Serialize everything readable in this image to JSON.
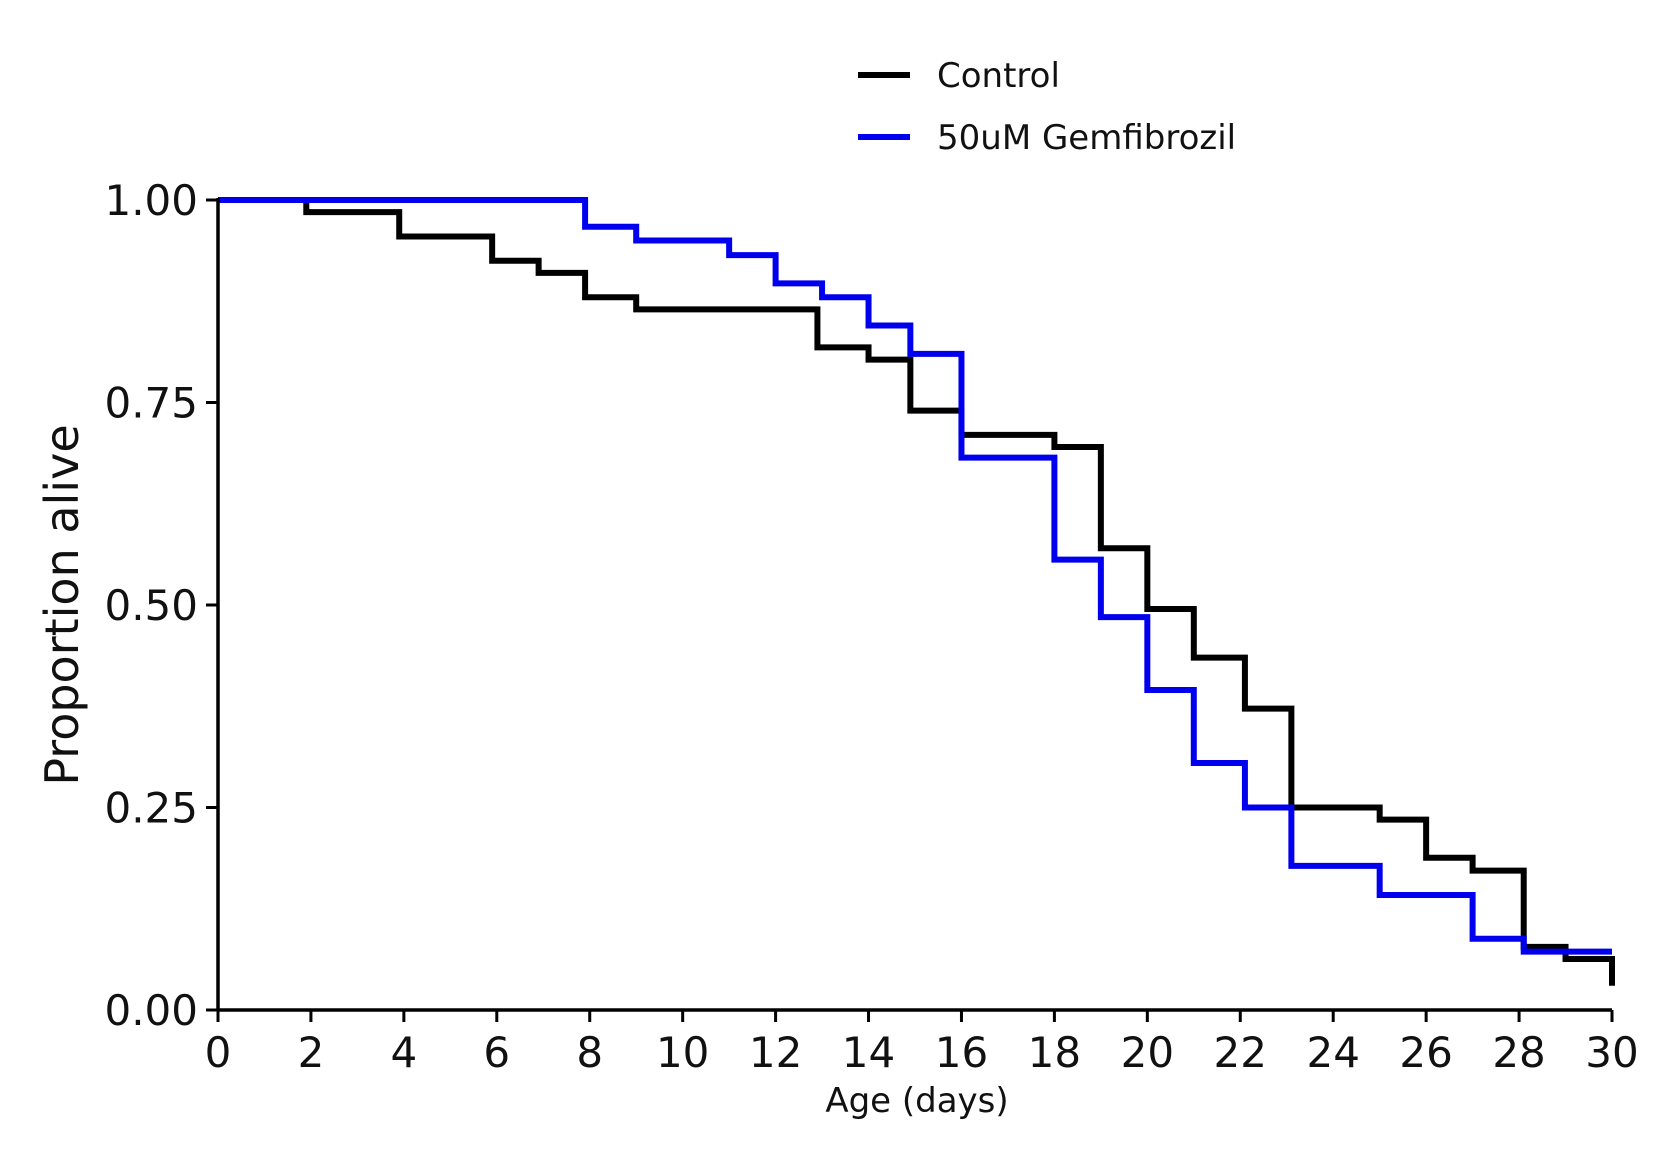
{
  "chart_data": {
    "type": "line",
    "step": "post",
    "title": "",
    "xlabel": "Age (days)",
    "ylabel": "Proportion alive",
    "xlim": [
      0,
      30
    ],
    "ylim": [
      0,
      1
    ],
    "xticks": [
      "0",
      "2",
      "4",
      "6",
      "8",
      "10",
      "12",
      "14",
      "16",
      "18",
      "20",
      "22",
      "24",
      "26",
      "28",
      "30"
    ],
    "yticks": [
      "0.00",
      "0.25",
      "0.50",
      "0.75",
      "1.00"
    ],
    "grid": false,
    "legend_position": "top-center",
    "series": [
      {
        "name": "Control",
        "color": "#000000",
        "x": [
          0,
          1.9,
          3.9,
          5.9,
          6.9,
          7.9,
          9.0,
          12.9,
          14.0,
          14.9,
          16.0,
          18.0,
          19.0,
          20.0,
          21.0,
          22.1,
          23.1,
          25.0,
          26.0,
          27.0,
          28.1,
          29.0,
          30.0
        ],
        "y": [
          1.0,
          0.985,
          0.955,
          0.925,
          0.91,
          0.88,
          0.865,
          0.818,
          0.803,
          0.74,
          0.71,
          0.695,
          0.57,
          0.495,
          0.435,
          0.372,
          0.25,
          0.235,
          0.188,
          0.172,
          0.078,
          0.063,
          0.03
        ]
      },
      {
        "name": "50uM Gemfibrozil",
        "color": "#0000ee",
        "x": [
          0,
          7.9,
          9.0,
          11.0,
          12.0,
          13.0,
          14.0,
          14.9,
          16.0,
          18.0,
          19.0,
          20.0,
          21.0,
          22.1,
          23.1,
          25.0,
          27.0,
          28.1,
          30.0
        ],
        "y": [
          1.0,
          0.967,
          0.95,
          0.932,
          0.897,
          0.88,
          0.845,
          0.81,
          0.682,
          0.556,
          0.485,
          0.395,
          0.305,
          0.25,
          0.178,
          0.142,
          0.088,
          0.072,
          0.072
        ]
      }
    ]
  }
}
